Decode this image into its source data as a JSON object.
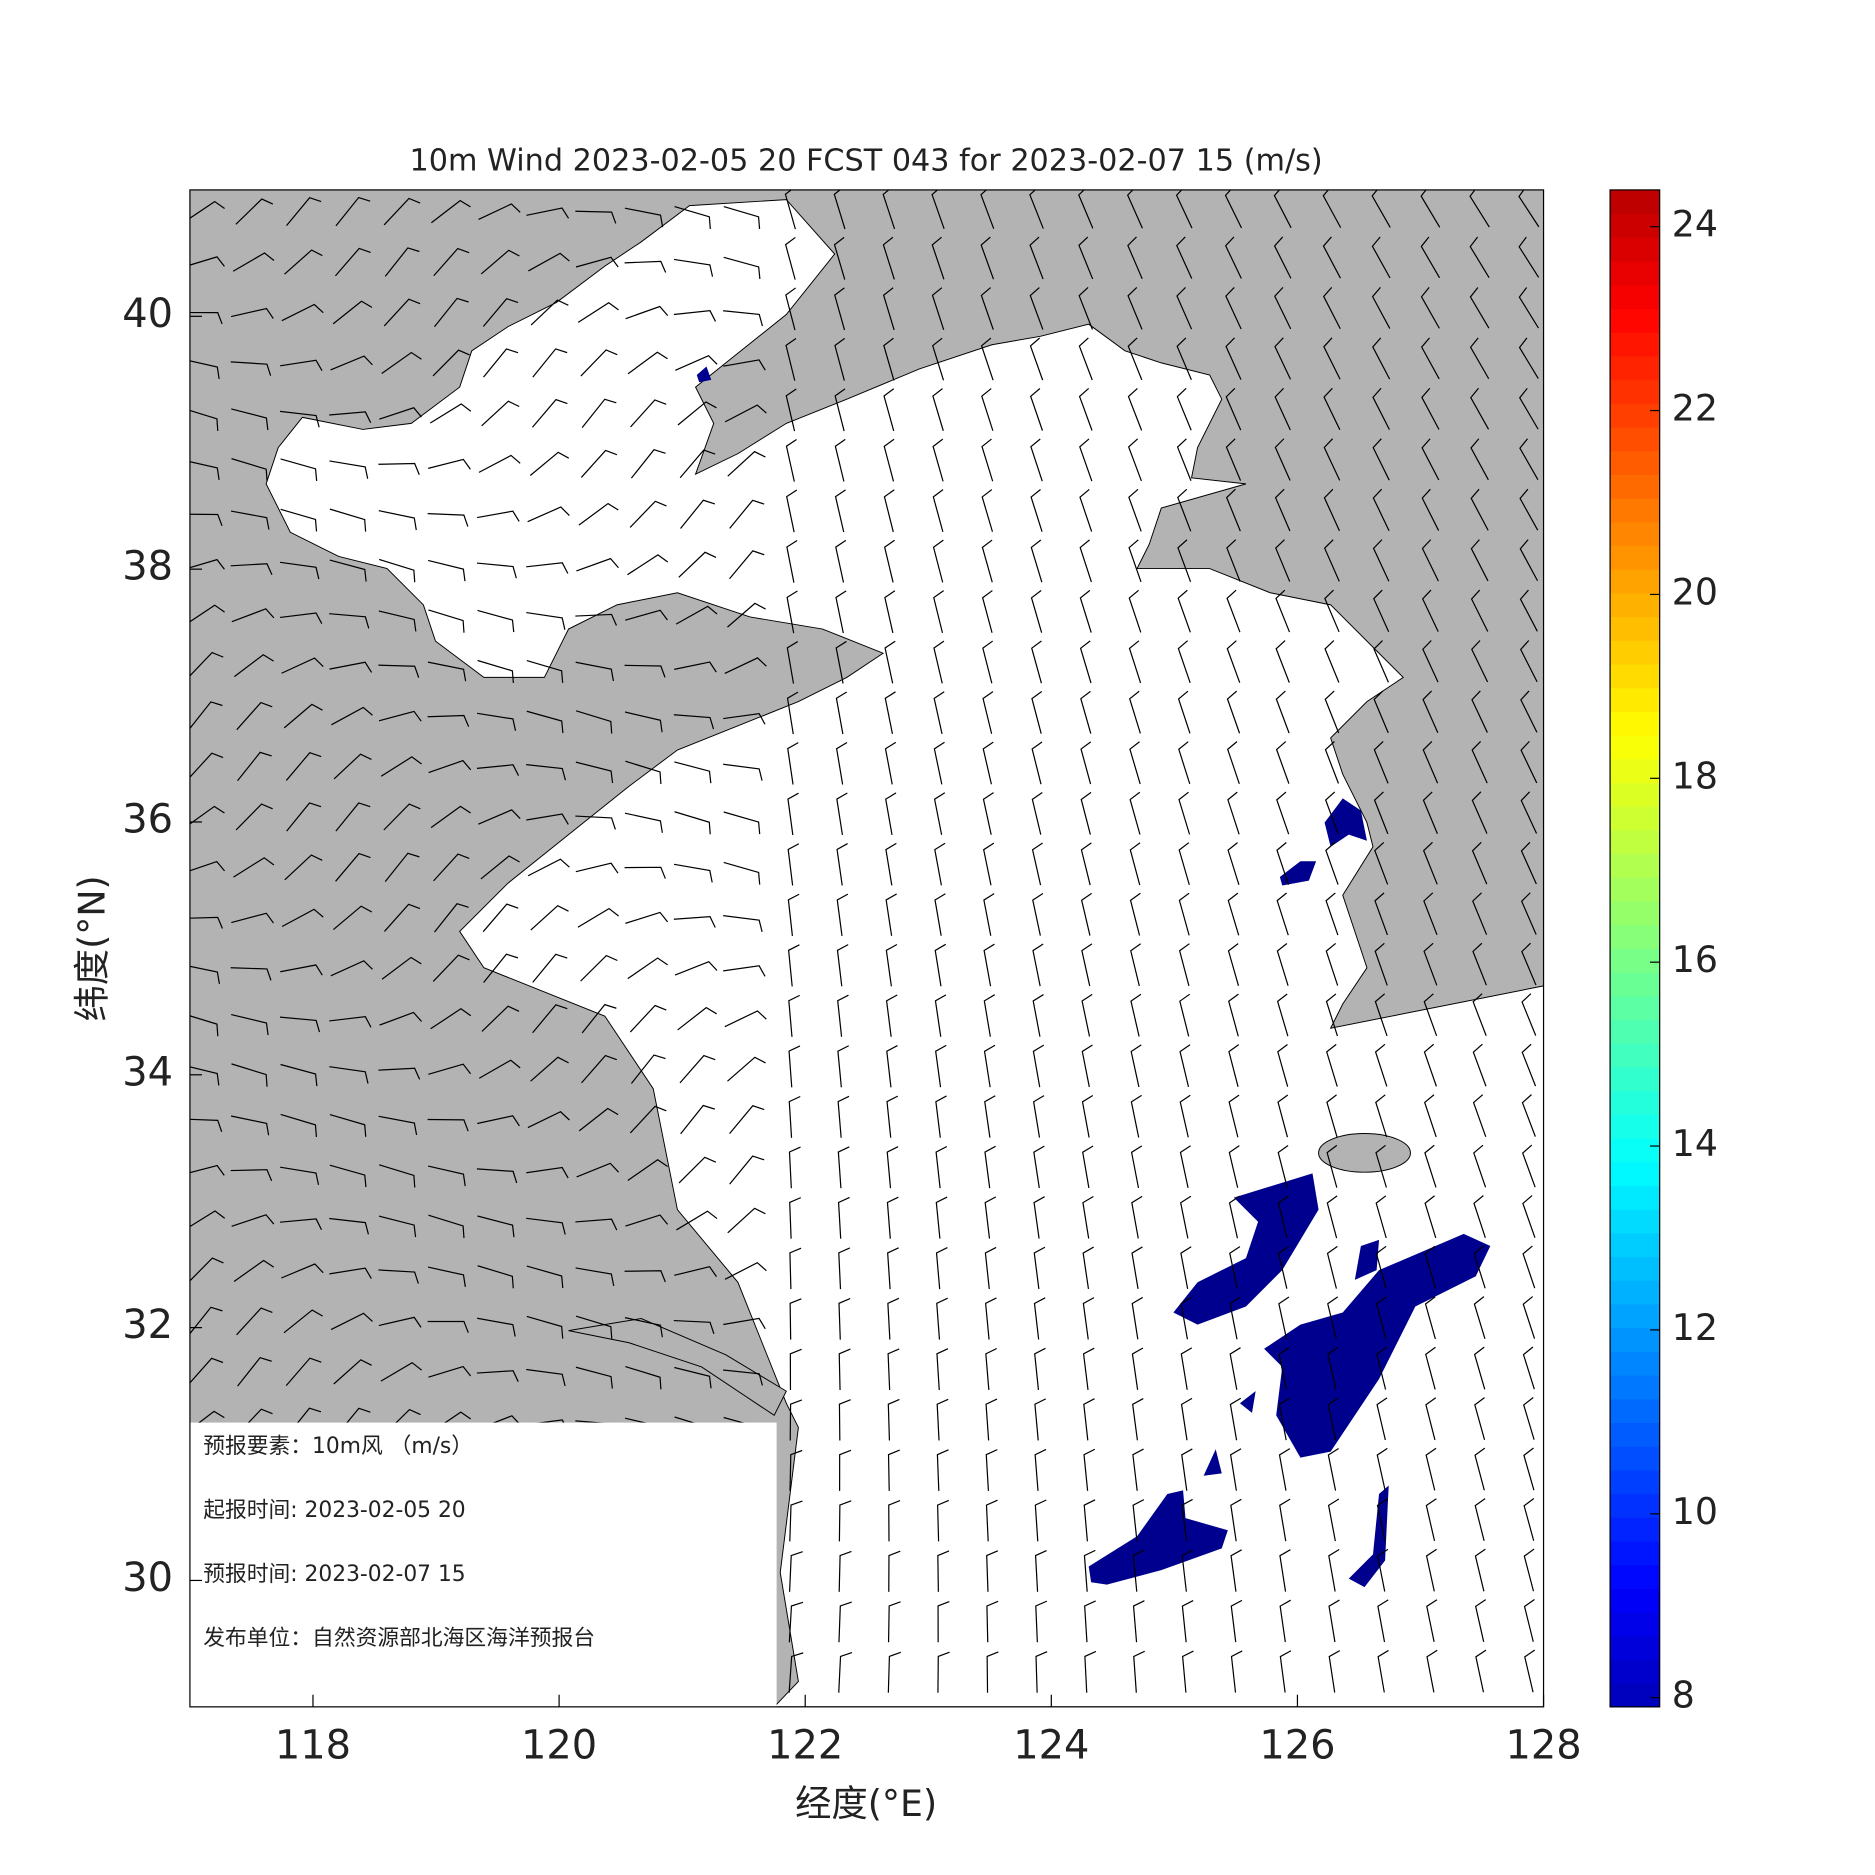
{
  "chart_data": {
    "type": "map",
    "title": "10m Wind 2023-02-05 20 FCST 043 for 2023-02-07 15 (m/s)",
    "xlabel": "经度(°E)",
    "ylabel": "纬度(°N)",
    "xlim": [
      117,
      128
    ],
    "xticks": [
      118,
      120,
      122,
      124,
      126,
      128
    ],
    "ylim": [
      29,
      41
    ],
    "yticks": [
      30,
      32,
      34,
      36,
      38,
      40
    ],
    "colorbar": {
      "lim": [
        7.9,
        24.4
      ],
      "ticks": [
        8,
        10,
        12,
        14,
        16,
        18,
        20,
        22,
        24
      ]
    },
    "info": [
      "预报要素：10m风 （m/s）",
      "起报时间: 2023-02-05 20",
      "预报时间: 2023-02-07 15",
      "发布单位：自然资源部北海区海洋预报台"
    ]
  }
}
